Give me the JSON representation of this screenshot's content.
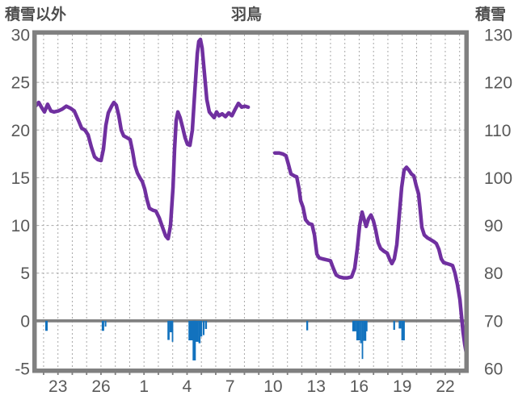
{
  "header": {
    "left_axis_title": "積雪以外",
    "title": "羽鳥",
    "right_axis_title": "積雪"
  },
  "chart_data": {
    "type": "line",
    "title": "羽鳥",
    "station": "羽鳥",
    "left_axis": {
      "title": "積雪以外",
      "min": -5,
      "max": 30,
      "ticks": [
        30,
        25,
        20,
        15,
        10,
        5,
        0,
        -5
      ]
    },
    "right_axis": {
      "title": "積雪",
      "min": 60,
      "max": 130,
      "ticks": [
        130,
        120,
        110,
        100,
        90,
        80,
        70,
        60
      ]
    },
    "x_axis": {
      "tick_labels": [
        "23",
        "26",
        "1",
        "4",
        "7",
        "10",
        "13",
        "16",
        "19",
        "22"
      ],
      "tick_positions_days": [
        0,
        3,
        6,
        9,
        12,
        15,
        18,
        21,
        24,
        27
      ],
      "day_min": -1.5,
      "day_max": 28.4,
      "grid_every_days": 1
    },
    "grid": {
      "horizontal_every_left_units": 5,
      "style": "dashed"
    },
    "colors": {
      "line": "#7030A0",
      "bars": "#1272BE",
      "border": "#808080",
      "zero_line": "#808080",
      "grid": "#a8a8a8",
      "text": "#595959"
    },
    "series": [
      {
        "name": "snow-depth",
        "axis": "right",
        "unit_hint": "cm",
        "color": "#7030A0",
        "segments": [
          [
            [
              -1.62,
              114.8
            ],
            [
              -1.34,
              115.8
            ],
            [
              -1.11,
              114.6
            ],
            [
              -0.94,
              113.8
            ],
            [
              -0.72,
              115.4
            ],
            [
              -0.49,
              114.0
            ],
            [
              -0.27,
              113.8
            ],
            [
              0.02,
              114.0
            ],
            [
              0.3,
              114.4
            ],
            [
              0.58,
              115.0
            ],
            [
              0.86,
              114.6
            ],
            [
              1.14,
              114.0
            ],
            [
              1.43,
              112.0
            ],
            [
              1.65,
              110.4
            ],
            [
              1.88,
              110.0
            ],
            [
              2.1,
              109.0
            ],
            [
              2.33,
              106.4
            ],
            [
              2.55,
              104.4
            ],
            [
              2.78,
              103.8
            ],
            [
              3.0,
              103.6
            ],
            [
              3.17,
              106.0
            ],
            [
              3.34,
              111.0
            ],
            [
              3.51,
              113.6
            ],
            [
              3.74,
              115.0
            ],
            [
              3.9,
              115.8
            ],
            [
              4.07,
              115.2
            ],
            [
              4.24,
              113.0
            ],
            [
              4.41,
              110.0
            ],
            [
              4.58,
              108.8
            ],
            [
              4.81,
              108.4
            ],
            [
              5.03,
              108.0
            ],
            [
              5.2,
              105.6
            ],
            [
              5.37,
              102.6
            ],
            [
              5.54,
              101.0
            ],
            [
              5.71,
              100.0
            ],
            [
              5.88,
              99.2
            ],
            [
              6.05,
              97.6
            ],
            [
              6.21,
              95.4
            ],
            [
              6.38,
              93.6
            ],
            [
              6.61,
              93.2
            ],
            [
              6.83,
              93.0
            ],
            [
              7.06,
              91.6
            ],
            [
              7.29,
              89.6
            ],
            [
              7.51,
              87.8
            ],
            [
              7.68,
              87.2
            ],
            [
              7.85,
              90.0
            ],
            [
              8.02,
              98.0
            ],
            [
              8.13,
              106.0
            ],
            [
              8.24,
              112.0
            ],
            [
              8.36,
              113.8
            ],
            [
              8.52,
              112.6
            ],
            [
              8.69,
              110.6
            ],
            [
              8.86,
              108.4
            ],
            [
              9.03,
              107.0
            ],
            [
              9.2,
              106.8
            ],
            [
              9.37,
              110.0
            ],
            [
              9.54,
              118.0
            ],
            [
              9.71,
              126.0
            ],
            [
              9.82,
              128.6
            ],
            [
              9.93,
              129.0
            ],
            [
              10.05,
              127.2
            ],
            [
              10.21,
              122.0
            ],
            [
              10.38,
              116.4
            ],
            [
              10.55,
              113.8
            ],
            [
              10.72,
              113.2
            ],
            [
              10.89,
              112.6
            ],
            [
              11.06,
              113.8
            ],
            [
              11.23,
              113.0
            ],
            [
              11.45,
              113.4
            ],
            [
              11.68,
              112.8
            ],
            [
              11.9,
              113.6
            ],
            [
              12.13,
              113.0
            ],
            [
              12.36,
              114.4
            ],
            [
              12.58,
              115.6
            ],
            [
              12.81,
              114.8
            ],
            [
              13.03,
              115.0
            ],
            [
              13.26,
              114.8
            ]
          ],
          [
            [
              15.12,
              105.2
            ],
            [
              15.4,
              105.2
            ],
            [
              15.68,
              105.0
            ],
            [
              15.9,
              104.6
            ],
            [
              16.07,
              102.8
            ],
            [
              16.24,
              100.8
            ],
            [
              16.47,
              100.4
            ],
            [
              16.64,
              100.2
            ],
            [
              16.81,
              97.6
            ],
            [
              16.92,
              95.2
            ],
            [
              17.09,
              93.8
            ],
            [
              17.26,
              91.2
            ],
            [
              17.48,
              90.4
            ],
            [
              17.71,
              90.2
            ],
            [
              17.88,
              88.0
            ],
            [
              18.05,
              84.0
            ],
            [
              18.21,
              83.2
            ],
            [
              18.44,
              83.0
            ],
            [
              18.72,
              82.8
            ],
            [
              19.0,
              82.6
            ],
            [
              19.17,
              81.2
            ],
            [
              19.4,
              79.6
            ],
            [
              19.62,
              79.2
            ],
            [
              19.9,
              79.0
            ],
            [
              20.18,
              79.0
            ],
            [
              20.47,
              79.2
            ],
            [
              20.69,
              81.0
            ],
            [
              20.86,
              85.0
            ],
            [
              21.03,
              90.0
            ],
            [
              21.2,
              92.8
            ],
            [
              21.37,
              91.0
            ],
            [
              21.48,
              89.8
            ],
            [
              21.65,
              91.4
            ],
            [
              21.82,
              92.2
            ],
            [
              21.99,
              91.0
            ],
            [
              22.15,
              89.0
            ],
            [
              22.32,
              86.4
            ],
            [
              22.49,
              85.2
            ],
            [
              22.72,
              84.6
            ],
            [
              22.95,
              84.2
            ],
            [
              23.11,
              83.0
            ],
            [
              23.28,
              82.0
            ],
            [
              23.45,
              83.0
            ],
            [
              23.62,
              86.0
            ],
            [
              23.79,
              92.0
            ],
            [
              23.96,
              98.0
            ],
            [
              24.13,
              101.6
            ],
            [
              24.3,
              102.2
            ],
            [
              24.47,
              101.6
            ],
            [
              24.64,
              100.8
            ],
            [
              24.81,
              100.4
            ],
            [
              24.97,
              98.4
            ],
            [
              25.14,
              96.6
            ],
            [
              25.26,
              93.0
            ],
            [
              25.37,
              89.6
            ],
            [
              25.54,
              88.0
            ],
            [
              25.76,
              87.4
            ],
            [
              25.99,
              87.0
            ],
            [
              26.21,
              86.6
            ],
            [
              26.38,
              86.2
            ],
            [
              26.55,
              85.0
            ],
            [
              26.72,
              83.0
            ],
            [
              26.89,
              82.2
            ],
            [
              27.12,
              82.0
            ],
            [
              27.34,
              81.8
            ],
            [
              27.51,
              81.6
            ],
            [
              27.68,
              80.0
            ],
            [
              27.85,
              77.6
            ],
            [
              28.02,
              74.4
            ],
            [
              28.13,
              71.0
            ],
            [
              28.24,
              67.6
            ],
            [
              28.36,
              65.0
            ],
            [
              28.47,
              63.2
            ]
          ]
        ]
      },
      {
        "name": "non-snow-element",
        "axis": "left",
        "color": "#1272BE",
        "bars": [
          [
            -0.8,
            -1.05,
            3
          ],
          [
            3.14,
            -1.05,
            3
          ],
          [
            3.32,
            -0.6,
            2
          ],
          [
            7.71,
            -2.0,
            2.7
          ],
          [
            7.9,
            -1.2,
            4
          ],
          [
            7.99,
            -2.2,
            1.8
          ],
          [
            9.34,
            -2.05,
            8.5
          ],
          [
            9.5,
            -4.15,
            4
          ],
          [
            9.68,
            -2.2,
            4.5
          ],
          [
            9.87,
            -2.35,
            2.5
          ],
          [
            9.99,
            -1.65,
            2.5
          ],
          [
            10.16,
            -1.5,
            2
          ],
          [
            10.32,
            -0.85,
            2.5
          ],
          [
            17.38,
            -1.0,
            2.3
          ],
          [
            20.66,
            -1.1,
            5
          ],
          [
            20.93,
            -2.05,
            4.7
          ],
          [
            21.12,
            -2.35,
            2
          ],
          [
            21.23,
            -4.0,
            1.8
          ],
          [
            21.38,
            -2.1,
            4
          ],
          [
            21.53,
            -1.1,
            1.7
          ],
          [
            23.44,
            -0.95,
            2.3
          ],
          [
            23.85,
            -0.8,
            3.4
          ],
          [
            24.06,
            -2.05,
            4.3
          ]
        ]
      }
    ]
  }
}
